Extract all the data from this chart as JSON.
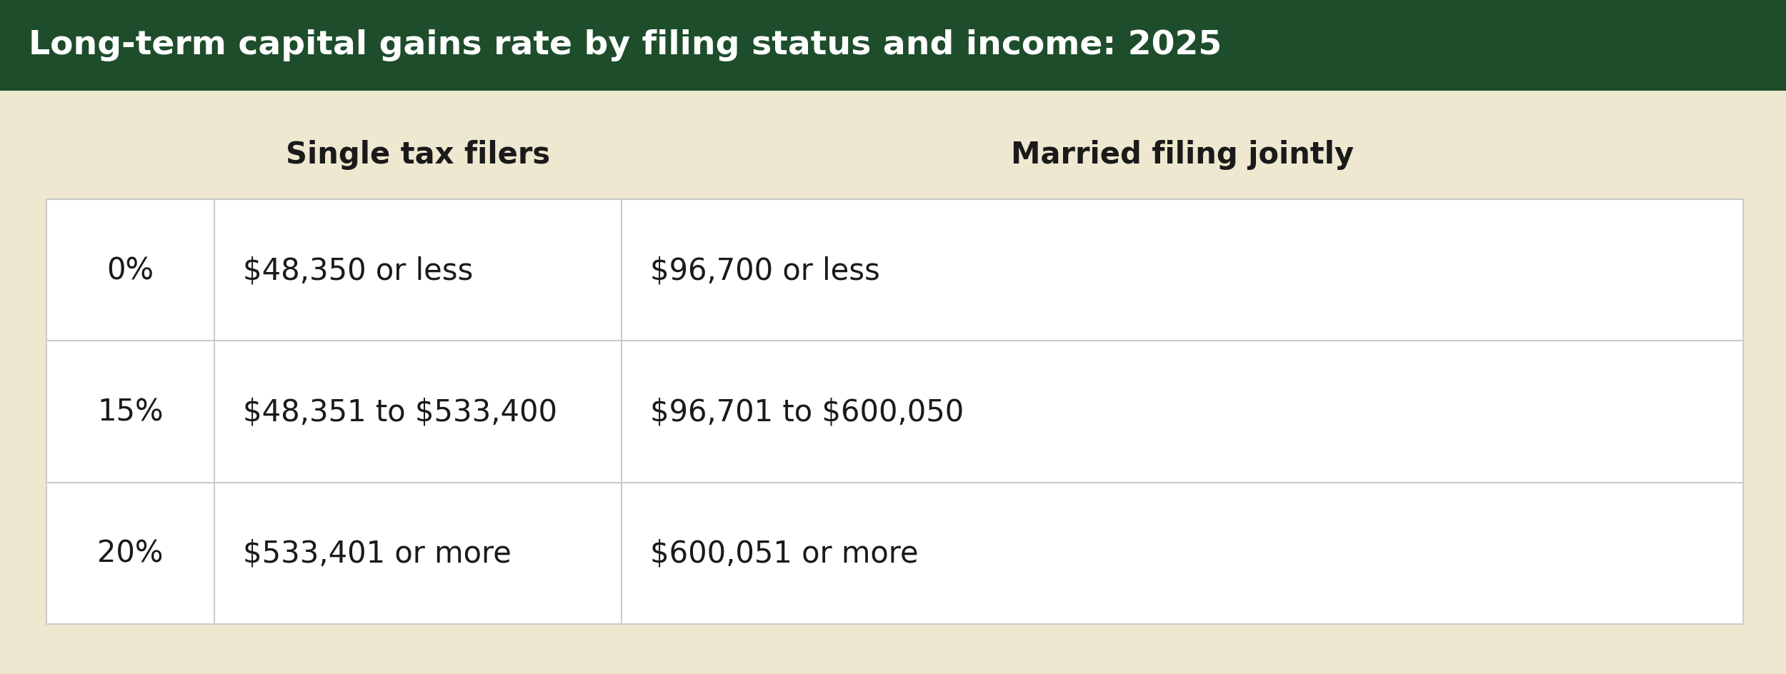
{
  "title": "Long-term capital gains rate by filing status and income: 2025",
  "title_bg_color": "#1e4d2b",
  "title_text_color": "#ffffff",
  "bg_color": "#eee8d0",
  "table_bg_color": "#ffffff",
  "header_col1": "Single tax filers",
  "header_col2": "Married filing jointly",
  "header_text_color": "#1a1a1a",
  "rows": [
    {
      "rate": "0%",
      "single": "$48,350 or less",
      "married": "$96,700 or less"
    },
    {
      "rate": "15%",
      "single": "$48,351 to $533,400",
      "married": "$96,701 to $600,050"
    },
    {
      "rate": "20%",
      "single": "$533,401 or more",
      "married": "$600,051 or more"
    }
  ],
  "row_text_color": "#1a1a1a",
  "border_color": "#cccccc",
  "title_fontsize": 34,
  "header_fontsize": 30,
  "cell_fontsize": 30
}
